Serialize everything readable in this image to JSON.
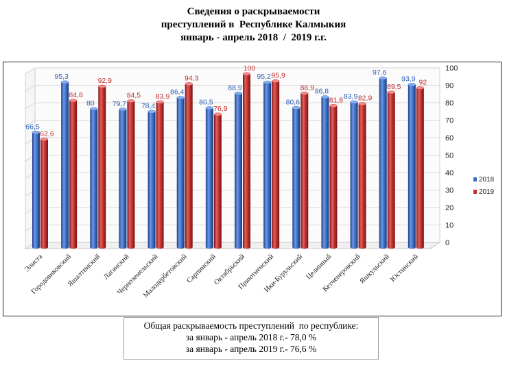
{
  "header": {
    "title_lines": [
      "Сведения о раскрываемости",
      "преступлений в  Республике Калмыкия",
      "январь - апрель 2018  /  2019 г.г."
    ]
  },
  "summary": {
    "lines": [
      "Общая раскрываемость преступлений  по республике:",
      "за январь - апрель 2018 г.- 78,0 %",
      "за январь - апрель 2019 г.- 76,6 %"
    ]
  },
  "chart_data": {
    "type": "bar",
    "title": "Сведения о раскрываемости преступлений в Республике Калмыкия январь - апрель 2018 / 2019 г.г.",
    "xlabel": "",
    "ylabel": "",
    "ylim": [
      0,
      100
    ],
    "yticks": [
      0,
      10,
      20,
      30,
      40,
      50,
      60,
      70,
      80,
      90,
      100
    ],
    "grid": true,
    "legend_position": "right",
    "categories": [
      "Элиста",
      "Городовиковский",
      "Яшалтинский",
      "Лаганский",
      "Черноземельский",
      "Малодербетовский",
      "Сарпинский",
      "Октябрьский",
      "Приютненский",
      "Ики-Бурульский",
      "Целинный",
      "Кетченеровский",
      "Яшкульский",
      "Юстинский"
    ],
    "series": [
      {
        "name": "2018",
        "color": "#3b6fc6",
        "values": [
          66.5,
          95.3,
          80,
          79.7,
          78.4,
          86.4,
          80.5,
          88.9,
          95.2,
          80.6,
          86.8,
          83.9,
          97.6,
          93.9
        ],
        "labels": [
          "66,5",
          "95,3",
          "80",
          "79,7",
          "78,4",
          "86,4",
          "80,5",
          "88,9",
          "95,2",
          "80,6",
          "86,8",
          "83,9",
          "97,6",
          "93,9"
        ]
      },
      {
        "name": "2019",
        "color": "#c0302e",
        "values": [
          62.6,
          84.8,
          92.9,
          84.5,
          83.9,
          94.3,
          76.9,
          100,
          95.9,
          88.9,
          81.8,
          82.9,
          89.5,
          92
        ],
        "labels": [
          "62,6",
          "84,8",
          "92,9",
          "84,5",
          "83,9",
          "94,3",
          "76,9",
          "100",
          "95,9",
          "88,9",
          "81,8",
          "82,9",
          "89,5",
          "92"
        ]
      }
    ]
  }
}
